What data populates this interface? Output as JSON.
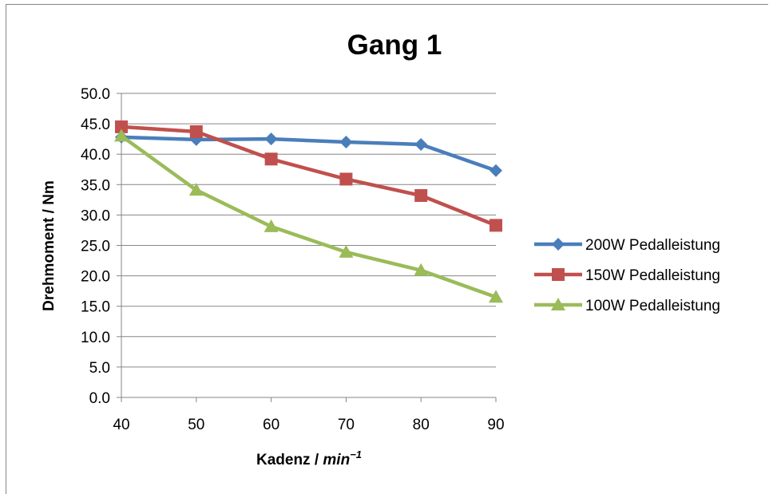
{
  "chart_data": {
    "type": "line",
    "title": "Gang 1",
    "xlabel_main": "Kadenz / ",
    "xlabel_unit": "min",
    "xlabel_exp": "−1",
    "ylabel": "Drehmoment / Nm",
    "x": [
      40,
      50,
      60,
      70,
      80,
      90
    ],
    "x_ticks": [
      "40",
      "50",
      "60",
      "70",
      "80",
      "90"
    ],
    "ylim": [
      0,
      50
    ],
    "y_ticks": [
      "0.0",
      "5.0",
      "10.0",
      "15.0",
      "20.0",
      "25.0",
      "30.0",
      "35.0",
      "40.0",
      "45.0",
      "50.0"
    ],
    "grid": true,
    "legend_position": "right",
    "series": [
      {
        "name": "200W Pedalleistung",
        "color": "#4a7ebb",
        "marker": "diamond",
        "values": [
          42.8,
          42.4,
          42.5,
          42.0,
          41.6,
          37.3
        ]
      },
      {
        "name": "150W Pedalleistung",
        "color": "#c0504d",
        "marker": "square",
        "values": [
          44.5,
          43.7,
          39.2,
          35.9,
          33.2,
          28.3
        ]
      },
      {
        "name": "100W Pedalleistung",
        "color": "#9bbb59",
        "marker": "triangle",
        "values": [
          43.0,
          34.1,
          28.1,
          23.9,
          20.9,
          16.5
        ]
      }
    ]
  }
}
